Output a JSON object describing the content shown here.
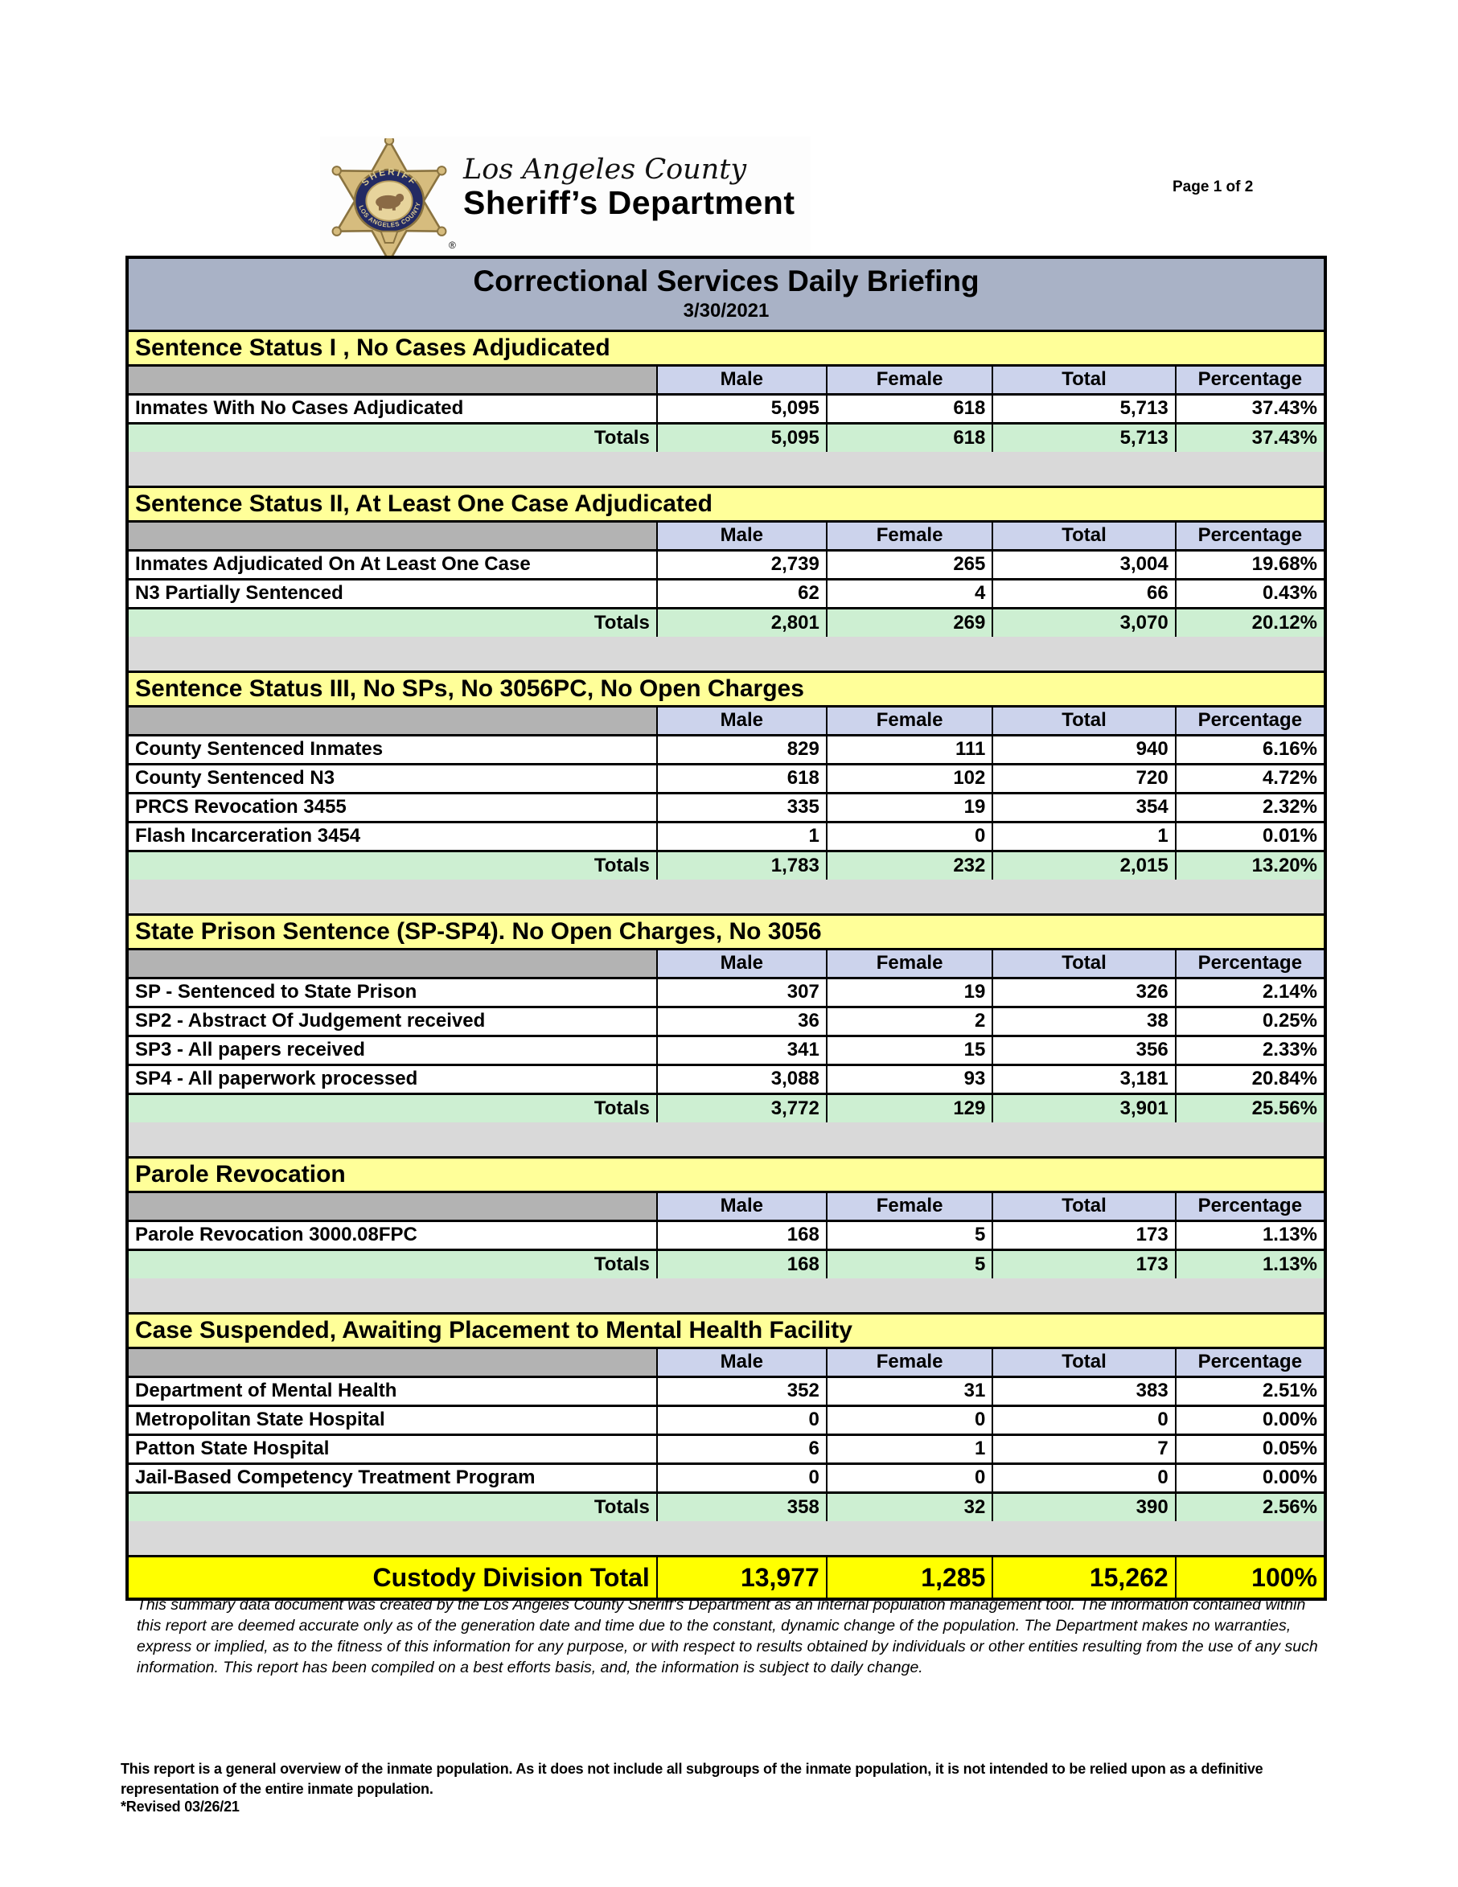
{
  "page": {
    "label": "Page 1 of 2"
  },
  "logo": {
    "county": "Los Angeles County",
    "department": "Sheriff’s Department",
    "badge_ring_top": "SHERIFF",
    "badge_ring_bottom": "LOS ANGELES COUNTY",
    "registered_mark": "®"
  },
  "report": {
    "title": "Correctional Services Daily Briefing",
    "date": "3/30/2021",
    "columns": [
      "Male",
      "Female",
      "Total",
      "Percentage"
    ],
    "totals_label": "Totals",
    "sections": [
      {
        "heading": "Sentence Status I , No Cases Adjudicated",
        "rows": [
          {
            "label": "Inmates With No Cases Adjudicated",
            "male": "5,095",
            "female": "618",
            "total": "5,713",
            "percentage": "37.43%"
          }
        ],
        "totals": {
          "male": "5,095",
          "female": "618",
          "total": "5,713",
          "percentage": "37.43%"
        }
      },
      {
        "heading": "Sentence Status II, At Least One Case Adjudicated",
        "rows": [
          {
            "label": "Inmates Adjudicated On At Least One Case",
            "male": "2,739",
            "female": "265",
            "total": "3,004",
            "percentage": "19.68%"
          },
          {
            "label": "N3 Partially Sentenced",
            "male": "62",
            "female": "4",
            "total": "66",
            "percentage": "0.43%"
          }
        ],
        "totals": {
          "male": "2,801",
          "female": "269",
          "total": "3,070",
          "percentage": "20.12%"
        }
      },
      {
        "heading": "Sentence Status III, No SPs, No 3056PC, No Open Charges",
        "rows": [
          {
            "label": "County Sentenced Inmates",
            "male": "829",
            "female": "111",
            "total": "940",
            "percentage": "6.16%"
          },
          {
            "label": "County Sentenced N3",
            "male": "618",
            "female": "102",
            "total": "720",
            "percentage": "4.72%"
          },
          {
            "label": "PRCS Revocation 3455",
            "male": "335",
            "female": "19",
            "total": "354",
            "percentage": "2.32%"
          },
          {
            "label": "Flash Incarceration 3454",
            "male": "1",
            "female": "0",
            "total": "1",
            "percentage": "0.01%"
          }
        ],
        "totals": {
          "male": "1,783",
          "female": "232",
          "total": "2,015",
          "percentage": "13.20%"
        }
      },
      {
        "heading": "State Prison Sentence (SP-SP4). No Open Charges, No 3056",
        "rows": [
          {
            "label": "SP - Sentenced to State Prison",
            "male": "307",
            "female": "19",
            "total": "326",
            "percentage": "2.14%"
          },
          {
            "label": "SP2 - Abstract Of Judgement received",
            "male": "36",
            "female": "2",
            "total": "38",
            "percentage": "0.25%"
          },
          {
            "label": "SP3 - All papers received",
            "male": "341",
            "female": "15",
            "total": "356",
            "percentage": "2.33%"
          },
          {
            "label": "SP4 - All paperwork processed",
            "male": "3,088",
            "female": "93",
            "total": "3,181",
            "percentage": "20.84%"
          }
        ],
        "totals": {
          "male": "3,772",
          "female": "129",
          "total": "3,901",
          "percentage": "25.56%"
        }
      },
      {
        "heading": "Parole Revocation",
        "rows": [
          {
            "label": "Parole Revocation 3000.08FPC",
            "male": "168",
            "female": "5",
            "total": "173",
            "percentage": "1.13%"
          }
        ],
        "totals": {
          "male": "168",
          "female": "5",
          "total": "173",
          "percentage": "1.13%"
        }
      },
      {
        "heading": "Case Suspended, Awaiting Placement to Mental Health Facility",
        "rows": [
          {
            "label": "Department of Mental Health",
            "male": "352",
            "female": "31",
            "total": "383",
            "percentage": "2.51%"
          },
          {
            "label": "Metropolitan State Hospital",
            "male": "0",
            "female": "0",
            "total": "0",
            "percentage": "0.00%"
          },
          {
            "label": "Patton State Hospital",
            "male": "6",
            "female": "1",
            "total": "7",
            "percentage": "0.05%"
          },
          {
            "label": "Jail-Based Competency Treatment Program",
            "male": "0",
            "female": "0",
            "total": "0",
            "percentage": "0.00%"
          }
        ],
        "totals": {
          "male": "358",
          "female": "32",
          "total": "390",
          "percentage": "2.56%"
        }
      }
    ],
    "grand_total": {
      "label": "Custody Division Total",
      "male": "13,977",
      "female": "1,285",
      "total": "15,262",
      "percentage": "100%"
    }
  },
  "footnotes": {
    "disclaimer": "This summary data document was created by the Los Angeles County Sheriff's Department as an internal population management tool.  The information contained within this report are deemed accurate only as of the generation date and time due to the constant, dynamic change of the population.  The Department makes no warranties, express or implied, as to the fitness of this information for any purpose, or with respect to results obtained by individuals or other entities resulting from the use of any such information.  This report has been compiled on a best efforts basis, and, the information is subject to daily change.",
    "overview_note": "This report is a general overview of the inmate population.  As it does not include all subgroups of the inmate population, it is not intended to be relied upon as a definitive representation of the entire inmate population.",
    "revised": "*Revised 03/26/21"
  },
  "colors": {
    "title_bar": "#a9b2c6",
    "section_header_bg": "#ffff99",
    "column_header_bg": "#ccd3ec",
    "corner_cell_bg": "#b3b3b3",
    "totals_row_bg": "#cdefd2",
    "spacer_bg": "#d9d9d9",
    "grand_total_bg": "#ffff00",
    "badge_gold": "#d6bc7e",
    "badge_navy": "#232a63"
  }
}
